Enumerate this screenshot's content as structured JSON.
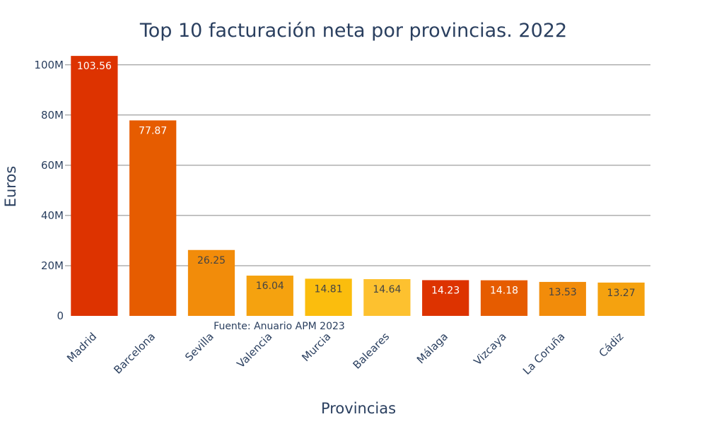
{
  "chart_data": {
    "type": "bar",
    "title": "Top 10 facturación neta por provincias. 2022",
    "xlabel": "Provincias",
    "ylabel": "Euros",
    "ylim": [
      0,
      105
    ],
    "y_ticks": [
      {
        "value": 0,
        "label": "0"
      },
      {
        "value": 20,
        "label": "20M"
      },
      {
        "value": 40,
        "label": "40M"
      },
      {
        "value": 60,
        "label": "60M"
      },
      {
        "value": 80,
        "label": "80M"
      },
      {
        "value": 100,
        "label": "100M"
      }
    ],
    "grid": true,
    "categories": [
      "Madrid",
      "Barcelona",
      "Sevilla",
      "Valencia",
      "Murcia",
      "Baleares",
      "Málaga",
      "Vizcaya",
      "La Coruña",
      "Cádiz"
    ],
    "values": [
      103.56,
      77.87,
      26.25,
      16.04,
      14.81,
      14.64,
      14.23,
      14.18,
      13.53,
      13.27
    ],
    "data_labels": [
      "103.56",
      "77.87",
      "26.25",
      "16.04",
      "14.81",
      "14.64",
      "14.23",
      "14.18",
      "13.53",
      "13.27"
    ],
    "colors": [
      "#dd3300",
      "#e65c00",
      "#f28c0a",
      "#f5a20f",
      "#fbbd0d",
      "#fdc12f",
      "#dd3300",
      "#e65c00",
      "#f28c0a",
      "#f5a20f"
    ],
    "label_colors": [
      "#ffffff",
      "#ffffff",
      "#444444",
      "#444444",
      "#444444",
      "#444444",
      "#ffffff",
      "#ffffff",
      "#444444",
      "#444444"
    ],
    "annotation": "Fuente: Anuario APM 2023"
  }
}
